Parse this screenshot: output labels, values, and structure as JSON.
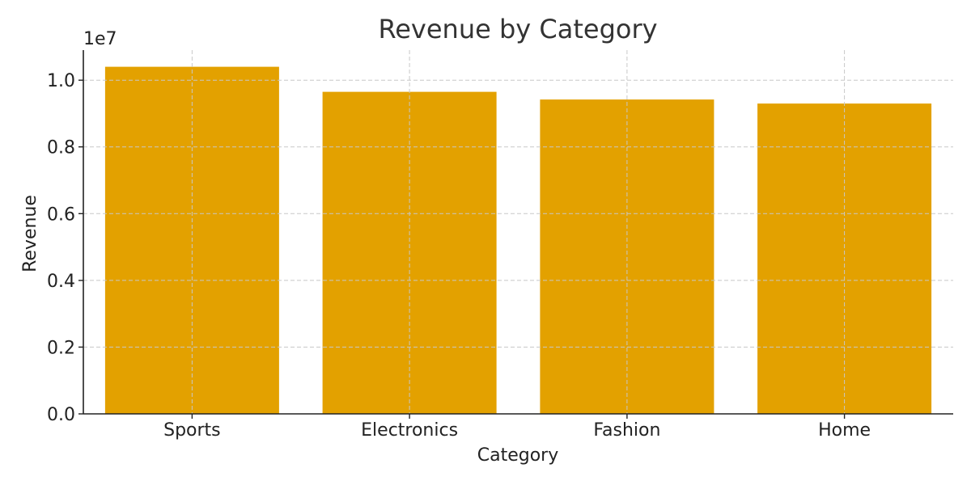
{
  "chart_data": {
    "type": "bar",
    "title": "Revenue by Category",
    "xlabel": "Category",
    "ylabel": "Revenue",
    "y_offset_label": "1e7",
    "categories": [
      "Sports",
      "Electronics",
      "Fashion",
      "Home"
    ],
    "values": [
      10400000,
      9650000,
      9420000,
      9300000
    ],
    "ylim": [
      0,
      10900000
    ],
    "yticks": [
      0,
      2000000,
      4000000,
      6000000,
      8000000,
      10000000
    ],
    "ytick_labels": [
      "0.0",
      "0.2",
      "0.4",
      "0.6",
      "0.8",
      "1.0"
    ],
    "grid": true,
    "colors": {
      "bar": "#E3A100"
    }
  }
}
